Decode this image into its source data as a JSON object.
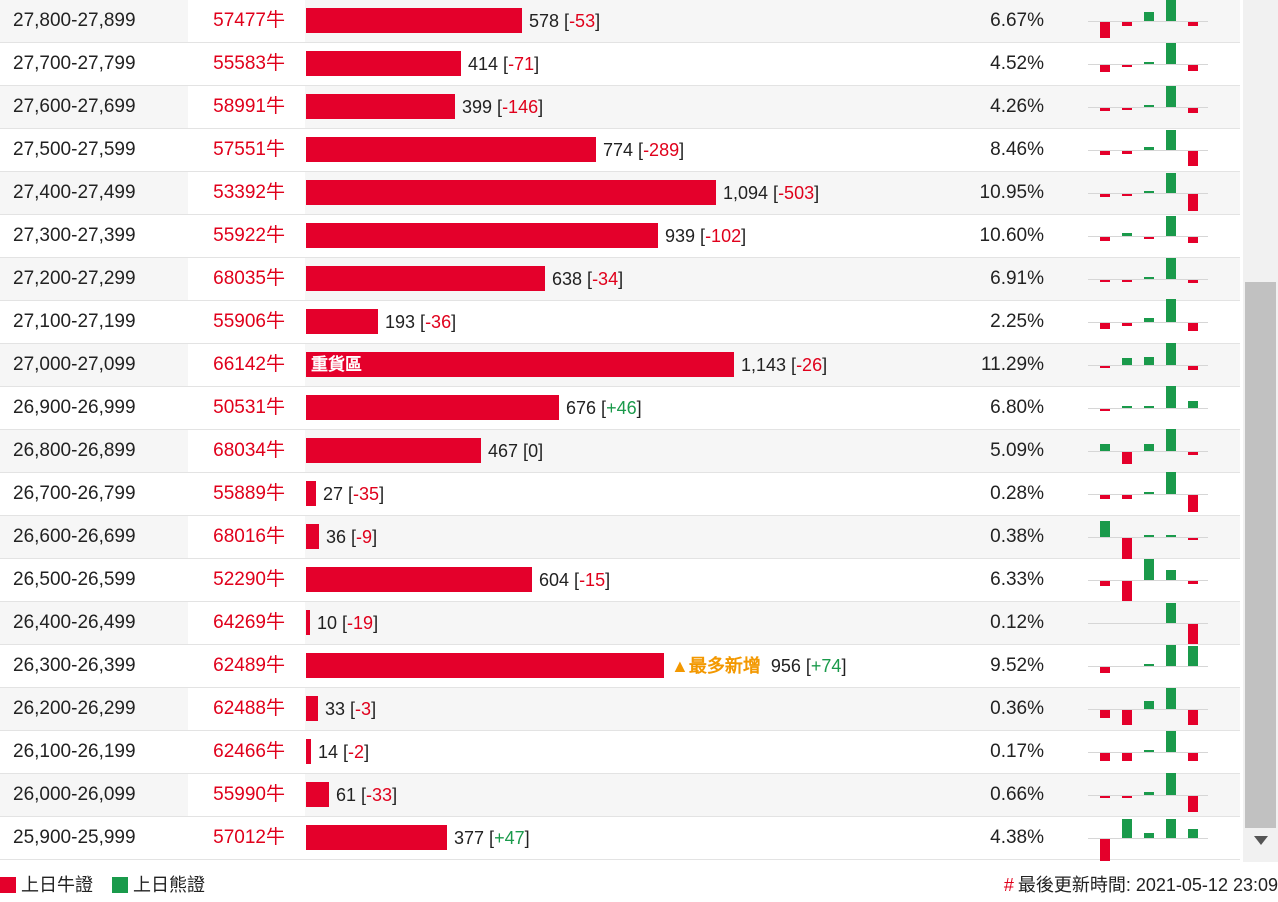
{
  "legend": {
    "bull_label": "上日牛證",
    "bear_label": "上日熊證",
    "bull_color": "#e4002b",
    "bear_color": "#1a9a4b"
  },
  "updated": {
    "hash": "#",
    "text": "最後更新時間: 2021-05-12 23:09"
  },
  "max_count": 1143,
  "rows": [
    {
      "range": "27,800-27,899",
      "code": "57477牛",
      "count": "578",
      "change": "-53",
      "pct": "6.67%",
      "value": 578,
      "spark": [
        -16,
        -4,
        9,
        24,
        -4
      ]
    },
    {
      "range": "27,700-27,799",
      "code": "55583牛",
      "count": "414",
      "change": "-71",
      "pct": "4.52%",
      "value": 414,
      "spark": [
        -7,
        -2,
        2,
        21,
        -6
      ]
    },
    {
      "range": "27,600-27,699",
      "code": "58991牛",
      "count": "399",
      "change": "-146",
      "pct": "4.26%",
      "value": 399,
      "spark": [
        -3,
        -2,
        2,
        21,
        -5
      ]
    },
    {
      "range": "27,500-27,599",
      "code": "57551牛",
      "count": "774",
      "change": "-289",
      "pct": "8.46%",
      "value": 774,
      "spark": [
        -4,
        -3,
        3,
        20,
        -15
      ]
    },
    {
      "range": "27,400-27,499",
      "code": "53392牛",
      "count": "1,094",
      "change": "-503",
      "pct": "10.95%",
      "value": 1094,
      "spark": [
        -3,
        -2,
        2,
        20,
        -17
      ]
    },
    {
      "range": "27,300-27,399",
      "code": "55922牛",
      "count": "939",
      "change": "-102",
      "pct": "10.60%",
      "value": 939,
      "spark": [
        -4,
        3,
        -2,
        20,
        -6
      ]
    },
    {
      "range": "27,200-27,299",
      "code": "68035牛",
      "count": "638",
      "change": "-34",
      "pct": "6.91%",
      "value": 638,
      "spark": [
        -2,
        -2,
        2,
        21,
        -3
      ]
    },
    {
      "range": "27,100-27,199",
      "code": "55906牛",
      "count": "193",
      "change": "-36",
      "pct": "2.25%",
      "value": 193,
      "spark": [
        -6,
        -3,
        4,
        23,
        -8
      ]
    },
    {
      "range": "27,000-27,099",
      "code": "66142牛",
      "count": "1,143",
      "change": "-26",
      "pct": "11.29%",
      "value": 1143,
      "label": "重貨區",
      "spark": [
        -2,
        7,
        8,
        22,
        -4
      ]
    },
    {
      "range": "26,900-26,999",
      "code": "50531牛",
      "count": "676",
      "change": "+46",
      "pct": "6.80%",
      "value": 676,
      "spark": [
        -2,
        2,
        2,
        22,
        7
      ]
    },
    {
      "range": "26,800-26,899",
      "code": "68034牛",
      "count": "467",
      "change": "0",
      "pct": "5.09%",
      "value": 467,
      "spark": [
        7,
        -12,
        7,
        22,
        -3
      ]
    },
    {
      "range": "26,700-26,799",
      "code": "55889牛",
      "count": "27",
      "change": "-35",
      "pct": "0.28%",
      "value": 27,
      "spark": [
        -4,
        -4,
        2,
        22,
        -17
      ]
    },
    {
      "range": "26,600-26,699",
      "code": "68016牛",
      "count": "36",
      "change": "-9",
      "pct": "0.38%",
      "value": 36,
      "spark": [
        16,
        -22,
        2,
        2,
        -2
      ]
    },
    {
      "range": "26,500-26,599",
      "code": "52290牛",
      "count": "604",
      "change": "-15",
      "pct": "6.33%",
      "value": 604,
      "spark": [
        -5,
        -20,
        21,
        10,
        -3
      ]
    },
    {
      "range": "26,400-26,499",
      "code": "64269牛",
      "count": "10",
      "change": "-19",
      "pct": "0.12%",
      "value": 10,
      "spark": [
        0,
        0,
        0,
        20,
        -20
      ]
    },
    {
      "range": "26,300-26,399",
      "code": "62489牛",
      "count": "956",
      "change": "+74",
      "pct": "9.52%",
      "value": 956,
      "badge": "▲最多新增",
      "spark": [
        -6,
        0,
        2,
        21,
        20
      ]
    },
    {
      "range": "26,200-26,299",
      "code": "62488牛",
      "count": "33",
      "change": "-3",
      "pct": "0.36%",
      "value": 33,
      "spark": [
        -8,
        -15,
        8,
        21,
        -15
      ]
    },
    {
      "range": "26,100-26,199",
      "code": "62466牛",
      "count": "14",
      "change": "-2",
      "pct": "0.17%",
      "value": 14,
      "spark": [
        -8,
        -8,
        2,
        21,
        -8
      ]
    },
    {
      "range": "26,000-26,099",
      "code": "55990牛",
      "count": "61",
      "change": "-33",
      "pct": "0.66%",
      "value": 61,
      "spark": [
        -2,
        -2,
        3,
        22,
        -16
      ]
    },
    {
      "range": "25,900-25,999",
      "code": "57012牛",
      "count": "377",
      "change": "+47",
      "pct": "4.38%",
      "value": 377,
      "spark": [
        -22,
        19,
        5,
        19,
        9
      ]
    }
  ]
}
